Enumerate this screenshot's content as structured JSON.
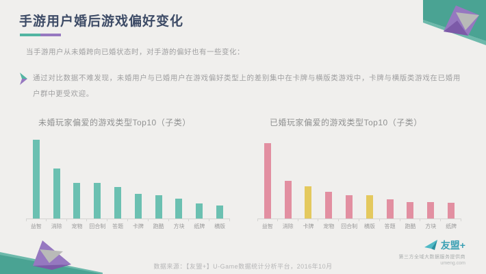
{
  "header": {
    "title": "手游用户婚后游戏偏好变化",
    "accent_teal": "#52b5a2",
    "accent_purple": "#9678c0"
  },
  "intro": {
    "text": "当手游用户从未婚跨向已婚状态时，对手游的偏好也有一些变化："
  },
  "bullet": {
    "text": "通过对比数据不难发现，未婚用户与已婚用户在游戏偏好类型上的差别集中在卡牌与横版类游戏中，卡牌与横版类游戏在已婚用户群中更受欢迎。"
  },
  "chart_data": [
    {
      "type": "bar",
      "title": "未婚玩家偏爱的游戏类型Top10（子类）",
      "categories": [
        "益智",
        "消除",
        "宠物",
        "回合制",
        "答题",
        "卡牌",
        "跑酷",
        "方块",
        "纸牌",
        "横版"
      ],
      "values": [
        24.0,
        15.2,
        10.8,
        10.8,
        9.6,
        7.4,
        7.0,
        6.0,
        4.6,
        4.0
      ],
      "bar_color": "#6bc0b1",
      "highlight_color": null,
      "highlight_indices": [],
      "xlabel": "",
      "ylabel": "",
      "ylim": [
        0,
        25
      ],
      "grid": false,
      "legend": "none"
    },
    {
      "type": "bar",
      "title": "已婚玩家偏爱的游戏类型Top10（子类）",
      "categories": [
        "益智",
        "消除",
        "卡牌",
        "宠物",
        "回合制",
        "横版",
        "答题",
        "跑酷",
        "方块",
        "纸牌"
      ],
      "values": [
        23.0,
        11.4,
        9.8,
        8.2,
        7.0,
        7.0,
        5.8,
        5.0,
        5.0,
        4.8
      ],
      "bar_color": "#e28fa1",
      "highlight_color": "#e4c95e",
      "highlight_indices": [
        2,
        5
      ],
      "xlabel": "",
      "ylabel": "",
      "ylim": [
        0,
        25
      ],
      "grid": false,
      "legend": "none"
    }
  ],
  "footer": {
    "source": "数据来源：【友盟+】U-Game数据统计分析平台，2016年10月"
  },
  "logo": {
    "name": "友盟+",
    "tagline": "第三方全域大数据服务提供商",
    "domain": "umeng.com"
  }
}
